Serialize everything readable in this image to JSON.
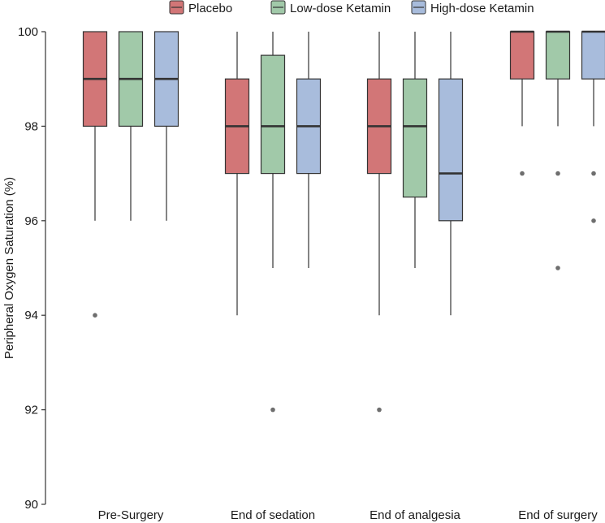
{
  "chart_data": {
    "type": "boxplot",
    "title": "",
    "xlabel": "",
    "ylabel": "Peripheral Oxygen Saturation (%)",
    "ylim": [
      90,
      100
    ],
    "yticks": [
      "90",
      "92",
      "94",
      "96",
      "98",
      "100"
    ],
    "categories": [
      "Pre-Surgery",
      "End of sedation",
      "End of analgesia",
      "End of surgery"
    ],
    "series": [
      {
        "name": "Placebo",
        "color": "#d27677",
        "boxes": [
          {
            "min": 96,
            "q1": 98,
            "median": 99,
            "q3": 100,
            "max": 100,
            "outliers": [
              94
            ]
          },
          {
            "min": 94,
            "q1": 97,
            "median": 98,
            "q3": 99,
            "max": 100,
            "outliers": []
          },
          {
            "min": 94,
            "q1": 97,
            "median": 98,
            "q3": 99,
            "max": 100,
            "outliers": [
              92
            ]
          },
          {
            "min": 98,
            "q1": 99,
            "median": 100,
            "q3": 100,
            "max": 100,
            "outliers": [
              97
            ]
          }
        ]
      },
      {
        "name": "Low-dose Ketamin",
        "color": "#a1c9a9",
        "boxes": [
          {
            "min": 96,
            "q1": 98,
            "median": 99,
            "q3": 100,
            "max": 100,
            "outliers": []
          },
          {
            "min": 95,
            "q1": 97,
            "median": 98,
            "q3": 99.5,
            "max": 100,
            "outliers": [
              92
            ]
          },
          {
            "min": 95,
            "q1": 96.5,
            "median": 98,
            "q3": 99,
            "max": 100,
            "outliers": []
          },
          {
            "min": 98,
            "q1": 99,
            "median": 100,
            "q3": 100,
            "max": 100,
            "outliers": [
              97,
              95
            ]
          }
        ]
      },
      {
        "name": "High-dose Ketamin",
        "color": "#a8bcdc",
        "boxes": [
          {
            "min": 96,
            "q1": 98,
            "median": 99,
            "q3": 100,
            "max": 100,
            "outliers": []
          },
          {
            "min": 95,
            "q1": 97,
            "median": 98,
            "q3": 99,
            "max": 100,
            "outliers": []
          },
          {
            "min": 94,
            "q1": 96,
            "median": 97,
            "q3": 99,
            "max": 100,
            "outliers": []
          },
          {
            "min": 98,
            "q1": 99,
            "median": 100,
            "q3": 100,
            "max": 100,
            "outliers": [
              97,
              96
            ]
          }
        ]
      }
    ],
    "legend": {
      "position": "top",
      "entries": [
        "Placebo",
        "Low-dose Ketamin",
        "High-dose Ketamin"
      ]
    }
  }
}
